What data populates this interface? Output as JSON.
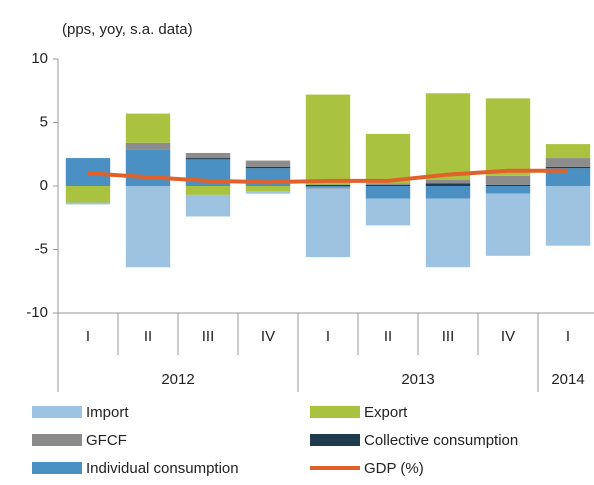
{
  "chart_data": {
    "type": "bar",
    "stacked": true,
    "subtitle": "(pps, yoy, s.a. data)",
    "categories": [
      "I",
      "II",
      "III",
      "IV",
      "I",
      "II",
      "III",
      "IV",
      "I"
    ],
    "groups": [
      {
        "name": "2012",
        "span": 4
      },
      {
        "name": "2013",
        "span": 4
      },
      {
        "name": "2014",
        "span": 1
      }
    ],
    "ylim": [
      -10,
      10
    ],
    "yticks": [
      -10,
      -5,
      0,
      5,
      10
    ],
    "series": [
      {
        "name": "Import",
        "color": "#9dc3e0",
        "values": [
          -0.15,
          -6.4,
          -1.7,
          -0.2,
          -5.4,
          -2.1,
          -5.4,
          -4.9,
          -4.7
        ]
      },
      {
        "name": "Export",
        "color": "#a9c23f",
        "values": [
          -1.3,
          2.3,
          -0.7,
          -0.4,
          7.1,
          3.9,
          6.8,
          6.1,
          1.1
        ]
      },
      {
        "name": "GFCF",
        "color": "#8c8c8c",
        "values": [
          0,
          0.5,
          0.4,
          0.5,
          -0.1,
          0.1,
          0.3,
          0.7,
          0.7
        ]
      },
      {
        "name": "Collective consumption",
        "color": "#1f3b4d",
        "values": [
          0,
          0,
          0.1,
          0.1,
          0.1,
          0.1,
          0.2,
          0.1,
          0.1
        ]
      },
      {
        "name": "Individual consumption",
        "color": "#4a90c2",
        "values": [
          2.2,
          2.9,
          2.1,
          1.4,
          -0.1,
          -1.0,
          -1.0,
          -0.6,
          1.4
        ]
      },
      {
        "name": "GDP (%)",
        "color": "#e0622a",
        "type": "line",
        "values": [
          1.0,
          0.7,
          0.4,
          0.3,
          0.4,
          0.4,
          0.9,
          1.2,
          1.2
        ]
      }
    ]
  }
}
